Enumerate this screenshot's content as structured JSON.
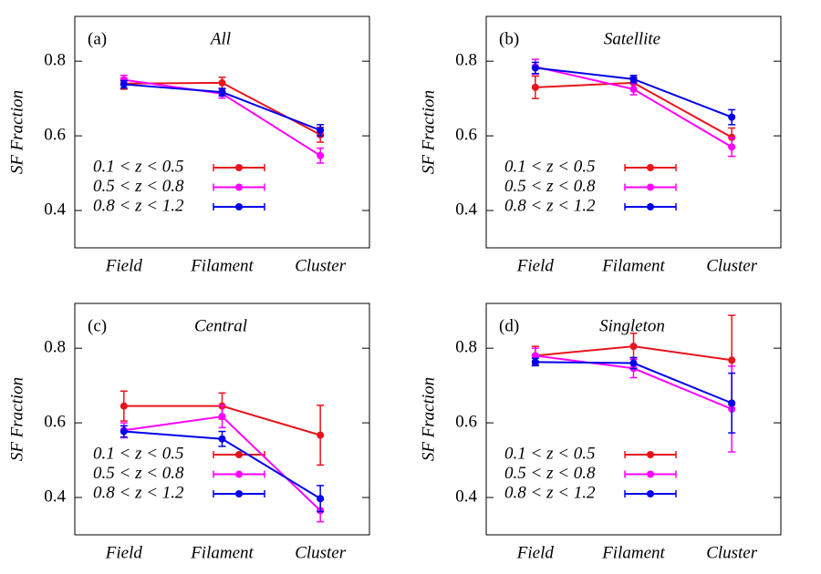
{
  "chart_data": [
    {
      "type": "line",
      "panel_label": "(a)",
      "title": "All",
      "ylabel": "SF Fraction",
      "categories": [
        "Field",
        "Filament",
        "Cluster"
      ],
      "ylim": [
        0.3,
        0.92
      ],
      "yticks": [
        0.4,
        0.6,
        0.8
      ],
      "legend": "lower left",
      "series": [
        {
          "name": "0.1 < z < 0.5",
          "color": "#e8141b",
          "values": [
            0.74,
            0.742,
            0.603
          ],
          "errors": [
            0.015,
            0.015,
            0.02
          ]
        },
        {
          "name": "0.5 < z < 0.8",
          "color": "#ff00ff",
          "values": [
            0.75,
            0.713,
            0.547
          ],
          "errors": [
            0.012,
            0.012,
            0.02
          ]
        },
        {
          "name": "0.8 < z < 1.2",
          "color": "#0000ee",
          "values": [
            0.738,
            0.717,
            0.615
          ],
          "errors": [
            0.01,
            0.01,
            0.015
          ]
        }
      ]
    },
    {
      "type": "line",
      "panel_label": "(b)",
      "title": "Satellite",
      "ylabel": "SF Fraction",
      "categories": [
        "Field",
        "Filament",
        "Cluster"
      ],
      "ylim": [
        0.3,
        0.92
      ],
      "yticks": [
        0.4,
        0.6,
        0.8
      ],
      "legend": "lower left",
      "series": [
        {
          "name": "0.1 < z < 0.5",
          "color": "#e8141b",
          "values": [
            0.73,
            0.742,
            0.596
          ],
          "errors": [
            0.03,
            0.015,
            0.025
          ]
        },
        {
          "name": "0.5 < z < 0.8",
          "color": "#ff00ff",
          "values": [
            0.785,
            0.725,
            0.57
          ],
          "errors": [
            0.02,
            0.015,
            0.025
          ]
        },
        {
          "name": "0.8 < z < 1.2",
          "color": "#0000ee",
          "values": [
            0.782,
            0.752,
            0.65
          ],
          "errors": [
            0.015,
            0.01,
            0.02
          ]
        }
      ]
    },
    {
      "type": "line",
      "panel_label": "(c)",
      "title": "Central",
      "ylabel": "SF Fraction",
      "categories": [
        "Field",
        "Filament",
        "Cluster"
      ],
      "ylim": [
        0.3,
        0.92
      ],
      "yticks": [
        0.4,
        0.6,
        0.8
      ],
      "legend": "lower left",
      "series": [
        {
          "name": "0.1 < z < 0.5",
          "color": "#e8141b",
          "values": [
            0.645,
            0.645,
            0.567
          ],
          "errors": [
            0.04,
            0.035,
            0.08
          ]
        },
        {
          "name": "0.5 < z < 0.8",
          "color": "#ff00ff",
          "values": [
            0.58,
            0.617,
            0.365
          ],
          "errors": [
            0.02,
            0.03,
            0.03
          ]
        },
        {
          "name": "0.8 < z < 1.2",
          "color": "#0000ee",
          "values": [
            0.577,
            0.557,
            0.397
          ],
          "errors": [
            0.015,
            0.02,
            0.035
          ]
        }
      ]
    },
    {
      "type": "line",
      "panel_label": "(d)",
      "title": "Singleton",
      "ylabel": "SF Fraction",
      "categories": [
        "Field",
        "Filament",
        "Cluster"
      ],
      "ylim": [
        0.3,
        0.92
      ],
      "yticks": [
        0.4,
        0.6,
        0.8
      ],
      "legend": "lower left",
      "series": [
        {
          "name": "0.1 < z < 0.5",
          "color": "#e8141b",
          "values": [
            0.78,
            0.805,
            0.768
          ],
          "errors": [
            0.025,
            0.035,
            0.12
          ]
        },
        {
          "name": "0.5 < z < 0.8",
          "color": "#ff00ff",
          "values": [
            0.78,
            0.746,
            0.637
          ],
          "errors": [
            0.02,
            0.025,
            0.115
          ]
        },
        {
          "name": "0.8 < z < 1.2",
          "color": "#0000ee",
          "values": [
            0.763,
            0.76,
            0.653
          ],
          "errors": [
            0.01,
            0.015,
            0.08
          ]
        }
      ]
    }
  ]
}
